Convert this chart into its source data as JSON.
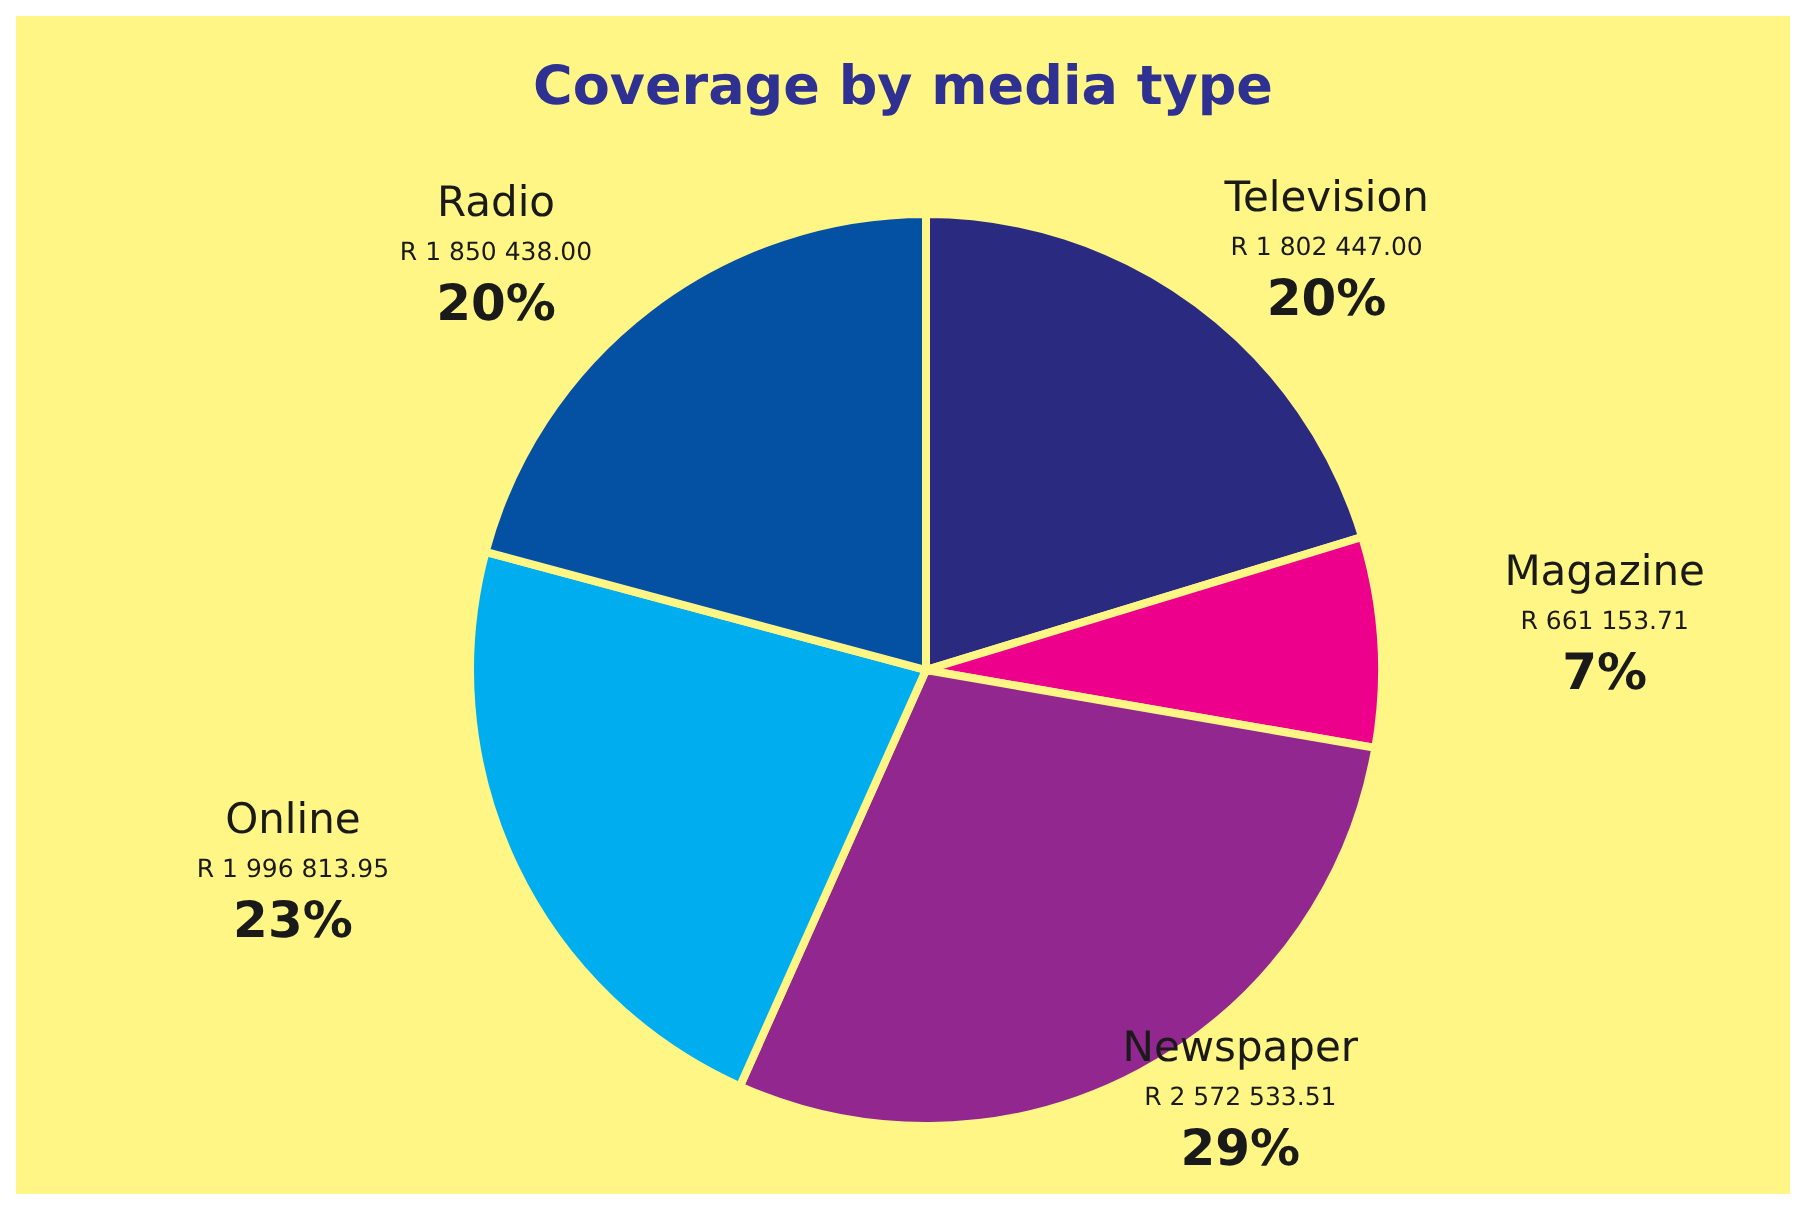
{
  "chart_data": {
    "type": "pie",
    "title": "Coverage by media type",
    "categories": [
      "Television",
      "Magazine",
      "Newspaper",
      "Online",
      "Radio"
    ],
    "values": [
      1802447.0,
      661153.71,
      2572533.51,
      1996813.95,
      1850438.0
    ],
    "value_labels": [
      "R 1 802 447.00\n20%",
      "R 661 153.71\n7%",
      "R 2 572 533.51\n29%",
      "R 1 996 813.95\n23%",
      "R 1 850 438.00\n20%"
    ],
    "colors": [
      "#2a2a80",
      "#ec008c",
      "#92278f",
      "#00aeef",
      "#0450a3"
    ]
  }
}
